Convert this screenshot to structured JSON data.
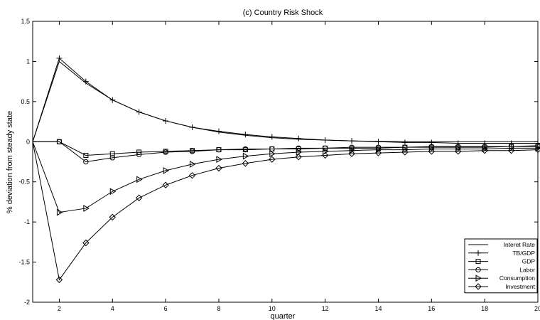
{
  "chart_data": {
    "type": "line",
    "title": "(c) Country Risk Shock",
    "xlabel": "quarter",
    "ylabel": "% deviation from steady state",
    "xlim": [
      1,
      20
    ],
    "ylim": [
      -2,
      1.5
    ],
    "xticks": [
      2,
      4,
      6,
      8,
      10,
      12,
      14,
      16,
      18,
      20
    ],
    "yticks": [
      -2,
      -1.5,
      -1,
      -0.5,
      0,
      0.5,
      1,
      1.5
    ],
    "grid": false,
    "legend_position": "bottom-right",
    "x": [
      1,
      2,
      3,
      4,
      5,
      6,
      7,
      8,
      9,
      10,
      11,
      12,
      13,
      14,
      15,
      16,
      17,
      18,
      19,
      20
    ],
    "series": [
      {
        "name": "Interet Rate",
        "marker": "none",
        "values": [
          0,
          1.0,
          0.73,
          0.52,
          0.37,
          0.26,
          0.18,
          0.12,
          0.08,
          0.05,
          0.03,
          0.02,
          0.01,
          0.005,
          0.0,
          0.0,
          0.0,
          0.0,
          0.0,
          0.0
        ]
      },
      {
        "name": "TB/GDP",
        "marker": "plus",
        "values": [
          0,
          1.04,
          0.75,
          0.52,
          0.37,
          0.26,
          0.18,
          0.13,
          0.09,
          0.06,
          0.04,
          0.02,
          0.01,
          0.0,
          -0.01,
          -0.01,
          -0.02,
          -0.02,
          -0.02,
          -0.02
        ]
      },
      {
        "name": "GDP",
        "marker": "square",
        "values": [
          0,
          0.0,
          -0.17,
          -0.15,
          -0.13,
          -0.12,
          -0.11,
          -0.1,
          -0.1,
          -0.09,
          -0.09,
          -0.08,
          -0.08,
          -0.08,
          -0.07,
          -0.07,
          -0.07,
          -0.07,
          -0.06,
          -0.06
        ]
      },
      {
        "name": "Labor",
        "marker": "circle",
        "values": [
          0,
          0.0,
          -0.25,
          -0.2,
          -0.16,
          -0.13,
          -0.12,
          -0.1,
          -0.09,
          -0.09,
          -0.08,
          -0.08,
          -0.07,
          -0.07,
          -0.07,
          -0.06,
          -0.06,
          -0.06,
          -0.06,
          -0.05
        ]
      },
      {
        "name": "Consumption",
        "marker": "triangle-right",
        "values": [
          0,
          -0.88,
          -0.83,
          -0.62,
          -0.47,
          -0.36,
          -0.28,
          -0.22,
          -0.18,
          -0.15,
          -0.13,
          -0.12,
          -0.11,
          -0.1,
          -0.1,
          -0.09,
          -0.09,
          -0.09,
          -0.08,
          -0.08
        ]
      },
      {
        "name": "Investment",
        "marker": "diamond",
        "values": [
          0,
          -1.72,
          -1.26,
          -0.94,
          -0.7,
          -0.54,
          -0.42,
          -0.33,
          -0.27,
          -0.22,
          -0.19,
          -0.17,
          -0.15,
          -0.14,
          -0.13,
          -0.12,
          -0.12,
          -0.11,
          -0.11,
          -0.1
        ]
      }
    ]
  }
}
